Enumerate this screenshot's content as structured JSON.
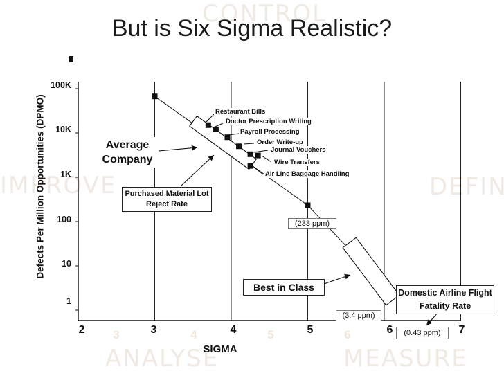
{
  "slide": {
    "title": "But is Six Sigma Realistic?",
    "watermarks": [
      "CONTROL",
      "IMPROVE",
      "DEFINE",
      "ANALYSE",
      "MEASURE"
    ]
  },
  "chart_data": {
    "type": "scatter",
    "title": "But is Six Sigma Realistic?",
    "xlabel": "SIGMA",
    "ylabel": "Defects Per Million Opportunities (DPMO)",
    "xlim": [
      2,
      7
    ],
    "ylog": true,
    "y_tick_labels": [
      "100K",
      "10K",
      "1K",
      "100",
      "10",
      "1"
    ],
    "x_tick_labels": [
      "2",
      "3",
      "4",
      "5",
      "6",
      "7"
    ],
    "x_alt_tick_labels": [
      "3",
      "4",
      "5",
      "6"
    ],
    "grid": "vertical",
    "trend_line": [
      [
        3,
        66807
      ],
      [
        5,
        233
      ],
      [
        6,
        3.4
      ],
      [
        7,
        1
      ]
    ],
    "points": [
      {
        "x": 3.0,
        "y": 66807,
        "label": ""
      },
      {
        "x": 3.7,
        "y": 15000,
        "label": "Restaurant Bills"
      },
      {
        "x": 3.8,
        "y": 12000,
        "label": "Doctor Prescription Writing"
      },
      {
        "x": 3.95,
        "y": 8000,
        "label": "Payroll Processing"
      },
      {
        "x": 4.1,
        "y": 5000,
        "label": "Order Write-up"
      },
      {
        "x": 4.25,
        "y": 3300,
        "label": "Journal Vouchers"
      },
      {
        "x": 4.35,
        "y": 3100,
        "label": "Wire Transfers"
      },
      {
        "x": 4.25,
        "y": 1800,
        "label": "Air Line Baggage Handling"
      },
      {
        "x": 5.0,
        "y": 233,
        "label": ""
      }
    ],
    "annotations": {
      "average_company": "Average Company",
      "purchased_material": "Purchased Material Lot Reject Rate",
      "ppm_233": "(233 ppm)",
      "best_in_class": "Best in Class",
      "ppm_3_4": "(3.4 ppm)",
      "airline_fatality": "Domestic Airline Flight Fatality Rate",
      "ppm_0_43": "(0.43 ppm)"
    }
  }
}
